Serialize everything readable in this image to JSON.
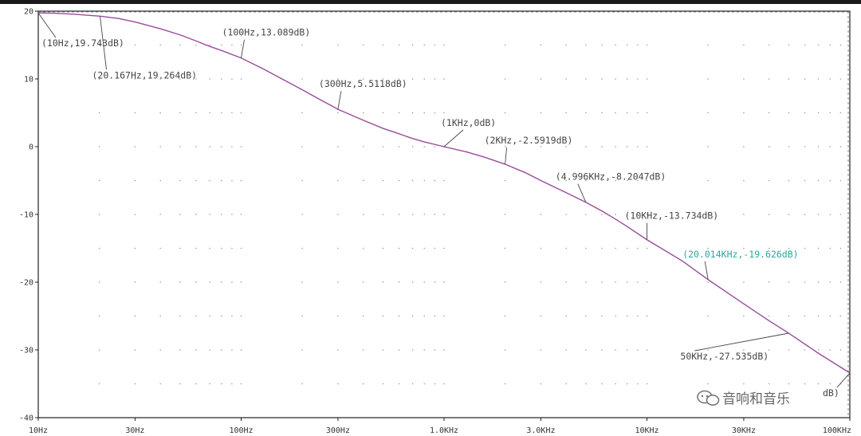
{
  "chart_data": {
    "type": "line",
    "title": "",
    "xlabel": "",
    "ylabel": "",
    "x_scale": "log",
    "xlim": [
      10,
      100000
    ],
    "ylim": [
      -40,
      20
    ],
    "grid": true,
    "x_ticks": [
      {
        "value": 10,
        "label": "10Hz"
      },
      {
        "value": 30,
        "label": "30Hz"
      },
      {
        "value": 100,
        "label": "100Hz"
      },
      {
        "value": 300,
        "label": "300Hz"
      },
      {
        "value": 1000,
        "label": "1.0KHz"
      },
      {
        "value": 3000,
        "label": "3.0KHz"
      },
      {
        "value": 10000,
        "label": "10KHz"
      },
      {
        "value": 30000,
        "label": "30KHz"
      },
      {
        "value": 100000,
        "label": "100KHz"
      }
    ],
    "y_ticks": [
      {
        "value": 20,
        "label": "20"
      },
      {
        "value": 10,
        "label": "10"
      },
      {
        "value": 0,
        "label": "0"
      },
      {
        "value": -10,
        "label": "-10"
      },
      {
        "value": -20,
        "label": "-20"
      },
      {
        "value": -30,
        "label": "-30"
      },
      {
        "value": -40,
        "label": "-40"
      }
    ],
    "series": [
      {
        "color": "#9b4b9b",
        "points": [
          [
            10,
            19.743
          ],
          [
            12,
            19.7
          ],
          [
            15,
            19.55
          ],
          [
            20.167,
            19.264
          ],
          [
            25,
            18.9
          ],
          [
            30,
            18.4
          ],
          [
            40,
            17.4
          ],
          [
            50,
            16.5
          ],
          [
            60,
            15.6
          ],
          [
            70,
            14.8
          ],
          [
            80,
            14.2
          ],
          [
            100,
            13.089
          ],
          [
            130,
            11.4
          ],
          [
            150,
            10.4
          ],
          [
            200,
            8.4
          ],
          [
            250,
            6.8
          ],
          [
            300,
            5.5118
          ],
          [
            400,
            3.9
          ],
          [
            500,
            2.7
          ],
          [
            600,
            1.9
          ],
          [
            700,
            1.2
          ],
          [
            800,
            0.7
          ],
          [
            1000,
            0
          ],
          [
            1300,
            -0.8
          ],
          [
            1600,
            -1.6
          ],
          [
            2000,
            -2.5919
          ],
          [
            2500,
            -3.8
          ],
          [
            3000,
            -5.0
          ],
          [
            4000,
            -6.8
          ],
          [
            4996,
            -8.2047
          ],
          [
            6000,
            -9.5
          ],
          [
            7000,
            -10.7
          ],
          [
            8000,
            -11.8
          ],
          [
            10000,
            -13.734
          ],
          [
            15000,
            -16.9
          ],
          [
            20014,
            -19.626
          ],
          [
            30000,
            -23.2
          ],
          [
            40000,
            -25.7
          ],
          [
            50000,
            -27.535
          ],
          [
            70000,
            -30.5
          ],
          [
            100000,
            -33.4
          ]
        ]
      }
    ],
    "annotations": [
      {
        "x": 10,
        "y": 19.743,
        "text": "(10Hz,19.743dB)",
        "highlight": false
      },
      {
        "x": 20.167,
        "y": 19.264,
        "text": "(20.167Hz,19.264dB)",
        "highlight": false
      },
      {
        "x": 100,
        "y": 13.089,
        "text": "(100Hz,13.089dB)",
        "highlight": false
      },
      {
        "x": 300,
        "y": 5.5118,
        "text": "(300Hz,5.5118dB)",
        "highlight": false
      },
      {
        "x": 1000,
        "y": 0,
        "text": "(1KHz,0dB)",
        "highlight": false
      },
      {
        "x": 2000,
        "y": -2.5919,
        "text": "(2KHz,-2.5919dB)",
        "highlight": false
      },
      {
        "x": 4996,
        "y": -8.2047,
        "text": "(4.996KHz,-8.2047dB)",
        "highlight": false
      },
      {
        "x": 10000,
        "y": -13.734,
        "text": "(10KHz,-13.734dB)",
        "highlight": false
      },
      {
        "x": 20014,
        "y": -19.626,
        "text": "(20.014KHz,-19.626dB)",
        "highlight": true
      },
      {
        "x": 50000,
        "y": -27.535,
        "text": "50KHz,-27.535dB)",
        "highlight": false
      },
      {
        "x": 100000,
        "y": -33.4,
        "text": "dB)",
        "highlight": false
      }
    ]
  },
  "watermark": {
    "icon": "wechat-icon",
    "text": "音响和音乐"
  }
}
